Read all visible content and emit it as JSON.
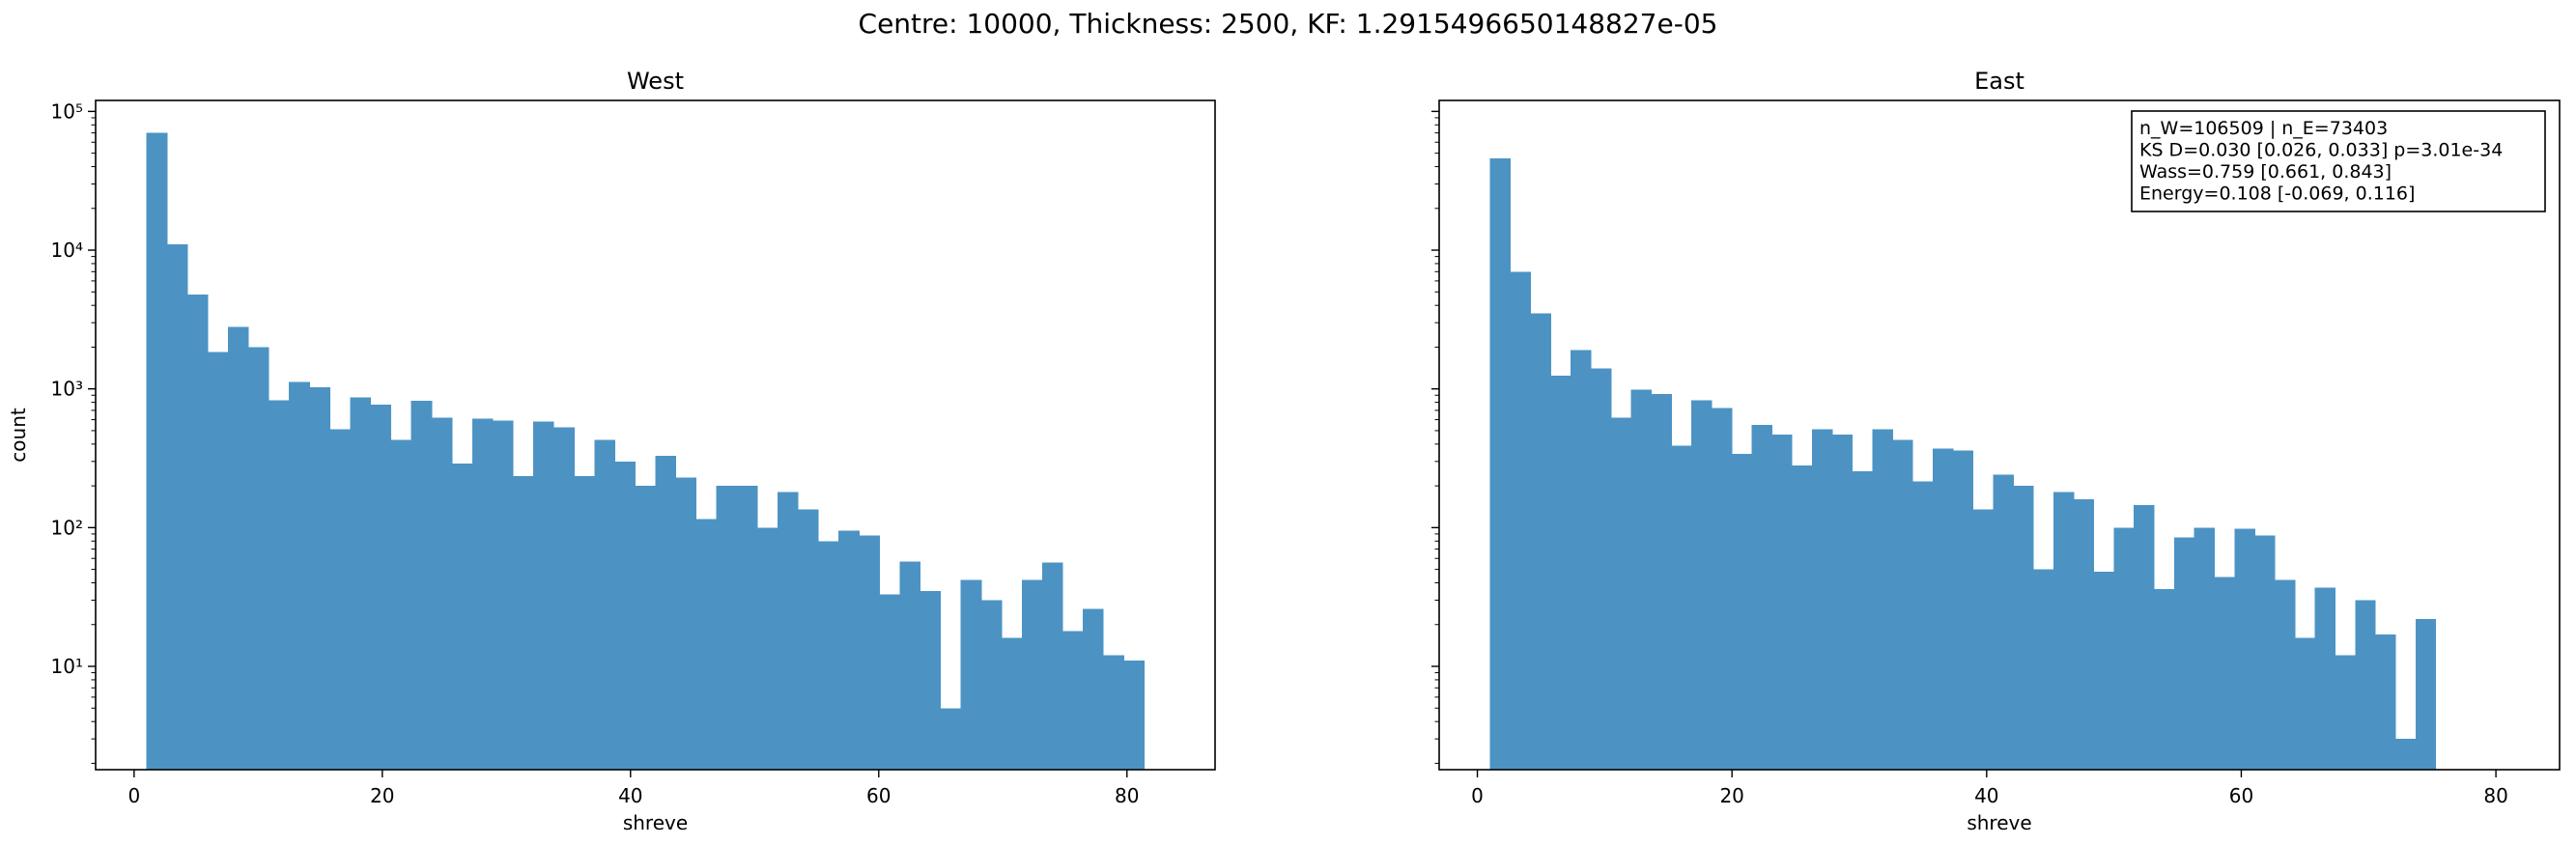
{
  "suptitle": "Centre: 10000, Thickness: 2500, KF: 1.2915496650148827e-05",
  "chart_data": [
    {
      "type": "bar",
      "title": "West",
      "xlabel": "shreve",
      "ylabel": "count",
      "yscale": "log",
      "xlim": [
        -3.1,
        87.1
      ],
      "ylim": [
        1.8,
        120000
      ],
      "xticks": [
        0,
        20,
        40,
        60,
        80
      ],
      "yticks": [
        {
          "value": 10,
          "label": "10¹"
        },
        {
          "value": 100,
          "label": "10²"
        },
        {
          "value": 1000,
          "label": "10³"
        },
        {
          "value": 10000,
          "label": "10⁴"
        },
        {
          "value": 100000,
          "label": "10⁵"
        }
      ],
      "bin_start": 1,
      "bin_width": 1.64,
      "values": [
        70000,
        11000,
        4800,
        1850,
        2800,
        2000,
        830,
        1120,
        1030,
        510,
        870,
        770,
        430,
        820,
        620,
        290,
        610,
        590,
        235,
        580,
        530,
        235,
        430,
        300,
        200,
        330,
        230,
        115,
        200,
        200,
        100,
        180,
        135,
        80,
        95,
        88,
        33,
        57,
        35,
        5,
        42,
        30,
        16,
        42,
        56,
        18,
        26,
        12,
        11,
        0
      ],
      "color": "#4c93c4"
    },
    {
      "type": "bar",
      "title": "East",
      "xlabel": "shreve",
      "ylabel": "",
      "yscale": "log",
      "xlim": [
        -3.0,
        85.0
      ],
      "ylim": [
        1.8,
        120000
      ],
      "xticks": [
        0,
        20,
        40,
        60,
        80
      ],
      "yticks": [],
      "bin_start": 1,
      "bin_width": 1.58,
      "values": [
        46000,
        7000,
        3500,
        1250,
        1900,
        1400,
        620,
        990,
        920,
        390,
        830,
        730,
        340,
        550,
        470,
        280,
        510,
        470,
        255,
        510,
        430,
        215,
        370,
        360,
        135,
        240,
        200,
        50,
        180,
        160,
        48,
        100,
        145,
        36,
        85,
        100,
        44,
        98,
        88,
        42,
        16,
        37,
        12,
        30,
        17,
        3,
        22,
        0,
        0,
        0
      ],
      "color": "#4c93c4",
      "annotation": [
        "n_W=106509 | n_E=73403",
        "KS D=0.030 [0.026, 0.033]  p=3.01e-34",
        "Wass=0.759 [0.661, 0.843]",
        "Energy=0.108 [-0.069, 0.116]"
      ]
    }
  ]
}
